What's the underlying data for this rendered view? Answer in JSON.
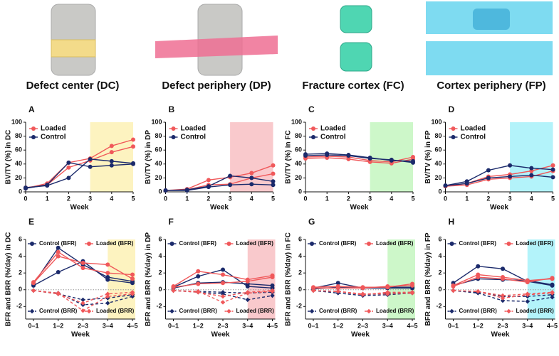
{
  "images": [
    {
      "caption": "Defect center (DC)"
    },
    {
      "caption": "Defect periphery (DP)"
    },
    {
      "caption": "Fracture cortex (FC)"
    },
    {
      "caption": "Cortex periphery (FP)"
    }
  ],
  "chart_data": [
    {
      "type": "line",
      "panel": "A",
      "x_label": "Week",
      "y_label": "BV/TV (%) in DC",
      "x": [
        0,
        1,
        2,
        3,
        4,
        5
      ],
      "xlim": [
        0,
        5
      ],
      "xticks": [
        0,
        1,
        2,
        3,
        4,
        5
      ],
      "ylim": [
        0,
        100
      ],
      "yticks": [
        0,
        20,
        40,
        60,
        80,
        100
      ],
      "legend": "top-left",
      "highlight": {
        "start": 3,
        "color": "#fdf3c0"
      },
      "series": [
        {
          "name": "Loaded",
          "color": "#f0585a",
          "marker": "circle",
          "values": [
            [
              5,
              12,
              42,
              48,
              66,
              75
            ],
            [
              6,
              10,
              35,
              45,
              57,
              65
            ]
          ]
        },
        {
          "name": "Control",
          "color": "#1b2a6b",
          "marker": "circle",
          "values": [
            [
              6,
              9,
              20,
              47,
              44,
              41
            ],
            [
              5,
              10,
              42,
              36,
              38,
              40
            ]
          ]
        }
      ]
    },
    {
      "type": "line",
      "panel": "B",
      "x_label": "Week",
      "y_label": "BV/TV (%) in DP",
      "x": [
        0,
        1,
        2,
        3,
        4,
        5
      ],
      "xlim": [
        0,
        5
      ],
      "xticks": [
        0,
        1,
        2,
        3,
        4,
        5
      ],
      "ylim": [
        0,
        100
      ],
      "yticks": [
        0,
        20,
        40,
        60,
        80,
        100
      ],
      "legend": "top-left",
      "highlight": {
        "start": 3,
        "color": "#f9c9cc"
      },
      "series": [
        {
          "name": "Loaded",
          "color": "#f0585a",
          "marker": "circle",
          "values": [
            [
              2,
              4,
              17,
              21,
              27,
              38
            ],
            [
              2,
              3,
              10,
              11,
              20,
              26
            ]
          ]
        },
        {
          "name": "Control",
          "color": "#1b2a6b",
          "marker": "circle",
          "values": [
            [
              2,
              3,
              8,
              23,
              20,
              15
            ],
            [
              2,
              2,
              7,
              10,
              11,
              10
            ]
          ]
        }
      ]
    },
    {
      "type": "line",
      "panel": "C",
      "x_label": "Week",
      "y_label": "BV/TV (%) in FC",
      "x": [
        0,
        1,
        2,
        3,
        4,
        5
      ],
      "xlim": [
        0,
        5
      ],
      "xticks": [
        0,
        1,
        2,
        3,
        4,
        5
      ],
      "ylim": [
        0,
        100
      ],
      "yticks": [
        0,
        20,
        40,
        60,
        80,
        100
      ],
      "legend": "top-left",
      "highlight": {
        "start": 3,
        "color": "#cdf7c9"
      },
      "series": [
        {
          "name": "Loaded",
          "color": "#f0585a",
          "marker": "circle",
          "values": [
            [
              50,
              51,
              50,
              45,
              43,
              50
            ],
            [
              48,
              49,
              47,
              43,
              41,
              47
            ]
          ]
        },
        {
          "name": "Control",
          "color": "#1b2a6b",
          "marker": "circle",
          "values": [
            [
              54,
              55,
              53,
              49,
              45,
              44
            ],
            [
              52,
              53,
              52,
              48,
              46,
              42
            ]
          ]
        }
      ]
    },
    {
      "type": "line",
      "panel": "D",
      "x_label": "Week",
      "y_label": "BV/TV (%) in FP",
      "x": [
        0,
        1,
        2,
        3,
        4,
        5
      ],
      "xlim": [
        0,
        5
      ],
      "xticks": [
        0,
        1,
        2,
        3,
        4,
        5
      ],
      "ylim": [
        0,
        100
      ],
      "yticks": [
        0,
        20,
        40,
        60,
        80,
        100
      ],
      "legend": "top-left",
      "highlight": {
        "start": 3,
        "color": "#b3f3fa"
      },
      "series": [
        {
          "name": "Loaded",
          "color": "#f0585a",
          "marker": "circle",
          "values": [
            [
              8,
              12,
              22,
              25,
              30,
              38
            ],
            [
              8,
              10,
              18,
              20,
              22,
              30
            ]
          ]
        },
        {
          "name": "Control",
          "color": "#1b2a6b",
          "marker": "circle",
          "values": [
            [
              9,
              15,
              31,
              38,
              34,
              32
            ],
            [
              9,
              12,
              20,
              22,
              24,
              21
            ]
          ]
        }
      ]
    },
    {
      "type": "line",
      "panel": "E",
      "x_label": "Week",
      "y_label": "BFR and BRR (%/day) in DC",
      "categories": [
        "0–1",
        "1–2",
        "2–3",
        "3–4",
        "4–5"
      ],
      "ylim": [
        -3.5,
        6
      ],
      "yticks": [
        -2,
        0,
        2,
        4,
        6
      ],
      "zero_line": true,
      "legend": "split",
      "highlight": {
        "start": 3,
        "color": "#fdf3c0"
      },
      "series": [
        {
          "name": "Control (BFR)",
          "color": "#1b2a6b",
          "marker": "circle",
          "values": [
            [
              0.7,
              5.0,
              3.0,
              1.5,
              1.0
            ],
            [
              0.5,
              2.1,
              3.4,
              1.2,
              0.8
            ]
          ]
        },
        {
          "name": "Loaded (BFR)",
          "color": "#f0585a",
          "marker": "circle",
          "values": [
            [
              0.9,
              4.5,
              2.6,
              2.0,
              1.8
            ],
            [
              0.8,
              4.0,
              3.2,
              3.0,
              1.3
            ]
          ]
        },
        {
          "name": "Control (BRR)",
          "color": "#1b2a6b",
          "marker": "diamond",
          "dash": true,
          "values": [
            [
              -0.1,
              -0.5,
              -1.2,
              -1.0,
              -0.6
            ],
            [
              -0.1,
              -0.4,
              -1.8,
              -1.6,
              -0.8
            ]
          ]
        },
        {
          "name": "Loaded (BRR)",
          "color": "#f0585a",
          "marker": "diamond",
          "dash": true,
          "values": [
            [
              -0.1,
              -0.4,
              -2.5,
              -0.8,
              -0.5
            ],
            [
              -0.1,
              -0.5,
              -1.6,
              -0.5,
              -0.3
            ]
          ]
        }
      ]
    },
    {
      "type": "line",
      "panel": "F",
      "x_label": "Week",
      "y_label": "BFR and BRR (%/day) in DP",
      "categories": [
        "0–1",
        "1–2",
        "2–3",
        "3–4",
        "4–5"
      ],
      "ylim": [
        -3.5,
        6
      ],
      "yticks": [
        -2,
        0,
        2,
        4,
        6
      ],
      "zero_line": true,
      "legend": "split",
      "highlight": {
        "start": 3,
        "color": "#f9c9cc"
      },
      "series": [
        {
          "name": "Control (BFR)",
          "color": "#1b2a6b",
          "marker": "circle",
          "values": [
            [
              0.3,
              1.6,
              2.4,
              0.4,
              0.2
            ],
            [
              0.2,
              0.8,
              0.9,
              0.7,
              0.5
            ]
          ]
        },
        {
          "name": "Loaded (BFR)",
          "color": "#f0585a",
          "marker": "circle",
          "values": [
            [
              0.4,
              2.2,
              1.8,
              1.2,
              1.7
            ],
            [
              0.3,
              0.7,
              0.8,
              1.0,
              1.5
            ]
          ]
        },
        {
          "name": "Control (BRR)",
          "color": "#1b2a6b",
          "marker": "diamond",
          "dash": true,
          "values": [
            [
              -0.1,
              -0.3,
              -0.5,
              -1.2,
              -0.7
            ],
            [
              -0.1,
              -0.2,
              -0.3,
              -0.4,
              -0.3
            ]
          ]
        },
        {
          "name": "Loaded (BRR)",
          "color": "#f0585a",
          "marker": "diamond",
          "dash": true,
          "values": [
            [
              -0.1,
              -0.2,
              -1.5,
              -0.4,
              -0.2
            ],
            [
              -0.1,
              -0.3,
              -0.8,
              -0.3,
              -0.1
            ]
          ]
        }
      ]
    },
    {
      "type": "line",
      "panel": "G",
      "x_label": "Week",
      "y_label": "BFR and BRR (%/day) in FC",
      "categories": [
        "0–1",
        "1–2",
        "2–3",
        "3–4",
        "4–5"
      ],
      "ylim": [
        -3.5,
        6
      ],
      "yticks": [
        -2,
        0,
        2,
        4,
        6
      ],
      "zero_line": true,
      "legend": "split",
      "highlight": {
        "start": 3,
        "color": "#cdf7c9"
      },
      "series": [
        {
          "name": "Control (BFR)",
          "color": "#1b2a6b",
          "marker": "circle",
          "values": [
            [
              0.2,
              0.8,
              0.2,
              0.3,
              0.3
            ],
            [
              0.1,
              0.3,
              0.2,
              0.2,
              0.2
            ]
          ]
        },
        {
          "name": "Loaded (BFR)",
          "color": "#f0585a",
          "marker": "circle",
          "values": [
            [
              0.3,
              0.4,
              0.3,
              0.3,
              0.7
            ],
            [
              0.2,
              0.2,
              0.2,
              0.4,
              0.5
            ]
          ]
        },
        {
          "name": "Control (BRR)",
          "color": "#1b2a6b",
          "marker": "diamond",
          "dash": true,
          "values": [
            [
              -0.1,
              -0.4,
              -0.7,
              -0.6,
              -0.4
            ],
            [
              -0.1,
              -0.2,
              -0.6,
              -0.4,
              -0.3
            ]
          ]
        },
        {
          "name": "Loaded (BRR)",
          "color": "#f0585a",
          "marker": "diamond",
          "dash": true,
          "values": [
            [
              -0.1,
              -0.2,
              -0.6,
              -0.3,
              -0.3
            ],
            [
              -0.1,
              -0.2,
              -0.5,
              -0.5,
              -0.4
            ]
          ]
        }
      ]
    },
    {
      "type": "line",
      "panel": "H",
      "x_label": "Week",
      "y_label": "BFR and BRR (%/day) in FP",
      "categories": [
        "0–1",
        "1–2",
        "2–3",
        "3–4",
        "4–5"
      ],
      "ylim": [
        -3.5,
        6
      ],
      "yticks": [
        -2,
        0,
        2,
        4,
        6
      ],
      "zero_line": true,
      "legend": "split",
      "highlight": {
        "start": 3,
        "color": "#b3f3fa"
      },
      "series": [
        {
          "name": "Control (BFR)",
          "color": "#1b2a6b",
          "marker": "circle",
          "values": [
            [
              0.8,
              2.8,
              2.5,
              1.0,
              0.5
            ],
            [
              0.5,
              1.3,
              1.2,
              1.1,
              0.6
            ]
          ]
        },
        {
          "name": "Loaded (BFR)",
          "color": "#f0585a",
          "marker": "circle",
          "values": [
            [
              0.5,
              1.8,
              1.5,
              1.1,
              1.3
            ],
            [
              0.4,
              1.5,
              1.3,
              0.9,
              1.4
            ]
          ]
        },
        {
          "name": "Control (BRR)",
          "color": "#1b2a6b",
          "marker": "diamond",
          "dash": true,
          "values": [
            [
              -0.1,
              -0.4,
              -1.3,
              -1.4,
              -0.9
            ],
            [
              -0.1,
              -0.3,
              -0.8,
              -0.8,
              -0.6
            ]
          ]
        },
        {
          "name": "Loaded (BRR)",
          "color": "#f0585a",
          "marker": "diamond",
          "dash": true,
          "values": [
            [
              -0.1,
              -0.2,
              -1.0,
              -0.6,
              -0.4
            ],
            [
              -0.1,
              -0.2,
              -0.7,
              -0.5,
              -0.3
            ]
          ]
        }
      ]
    }
  ]
}
